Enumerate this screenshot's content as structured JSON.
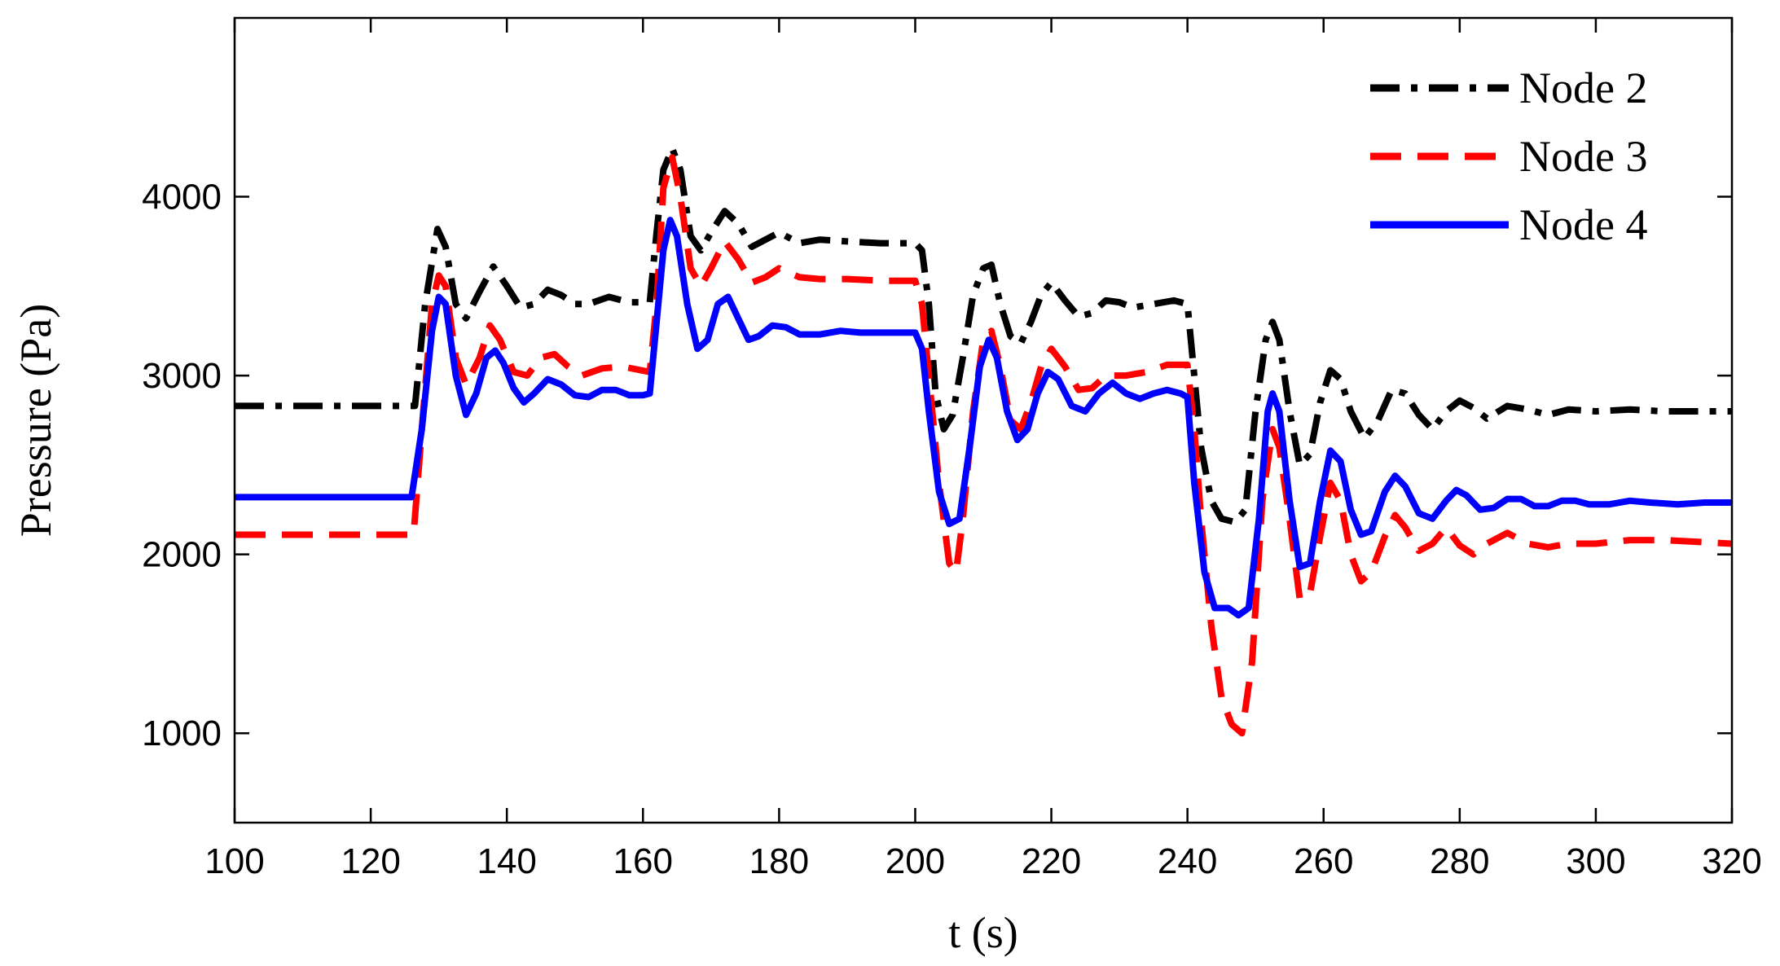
{
  "chart_data": {
    "type": "line",
    "xlabel": "t (s)",
    "ylabel": "Pressure (Pa)",
    "xlim": [
      100,
      320
    ],
    "ylim": [
      500,
      5000
    ],
    "x_ticks": [
      100,
      120,
      140,
      160,
      180,
      200,
      220,
      240,
      260,
      280,
      300,
      320
    ],
    "y_ticks": [
      1000,
      2000,
      3000,
      4000
    ],
    "x_tick_labels": [
      "100",
      "120",
      "140",
      "160",
      "180",
      "200",
      "220",
      "240",
      "260",
      "280",
      "300",
      "320"
    ],
    "y_tick_labels": [
      "1000",
      "2000",
      "3000",
      "4000"
    ],
    "grid": false,
    "legend_position": "top-right",
    "series": [
      {
        "name": "Node 2",
        "color": "#000000",
        "style": "dash-dot",
        "points": [
          [
            100,
            2830
          ],
          [
            125,
            2830
          ],
          [
            126.5,
            2830
          ],
          [
            128,
            3400
          ],
          [
            129.8,
            3820
          ],
          [
            131,
            3720
          ],
          [
            132.5,
            3400
          ],
          [
            134,
            3320
          ],
          [
            136,
            3470
          ],
          [
            138,
            3610
          ],
          [
            140,
            3500
          ],
          [
            142,
            3380
          ],
          [
            144,
            3400
          ],
          [
            146,
            3480
          ],
          [
            148,
            3450
          ],
          [
            150,
            3400
          ],
          [
            152,
            3400
          ],
          [
            155,
            3440
          ],
          [
            158,
            3410
          ],
          [
            161,
            3410
          ],
          [
            162,
            3800
          ],
          [
            163,
            4150
          ],
          [
            164.3,
            4270
          ],
          [
            165.5,
            4150
          ],
          [
            167,
            3780
          ],
          [
            168.5,
            3700
          ],
          [
            170,
            3800
          ],
          [
            172,
            3920
          ],
          [
            174,
            3850
          ],
          [
            176,
            3720
          ],
          [
            178,
            3760
          ],
          [
            180,
            3800
          ],
          [
            183,
            3740
          ],
          [
            186,
            3760
          ],
          [
            190,
            3750
          ],
          [
            195,
            3740
          ],
          [
            199,
            3740
          ],
          [
            200,
            3740
          ],
          [
            201,
            3700
          ],
          [
            202,
            3400
          ],
          [
            203,
            2900
          ],
          [
            204.2,
            2700
          ],
          [
            205.5,
            2780
          ],
          [
            207,
            3100
          ],
          [
            208.5,
            3450
          ],
          [
            210,
            3600
          ],
          [
            211.2,
            3620
          ],
          [
            212.5,
            3400
          ],
          [
            214,
            3220
          ],
          [
            215.5,
            3180
          ],
          [
            217,
            3300
          ],
          [
            218.5,
            3450
          ],
          [
            220,
            3520
          ],
          [
            222,
            3420
          ],
          [
            224,
            3330
          ],
          [
            226,
            3350
          ],
          [
            228,
            3420
          ],
          [
            230,
            3410
          ],
          [
            232,
            3380
          ],
          [
            235,
            3400
          ],
          [
            238,
            3420
          ],
          [
            240,
            3400
          ],
          [
            241,
            3000
          ],
          [
            242,
            2600
          ],
          [
            243.5,
            2300
          ],
          [
            245,
            2200
          ],
          [
            247,
            2180
          ],
          [
            248.5,
            2250
          ],
          [
            250,
            2800
          ],
          [
            251.5,
            3200
          ],
          [
            252.5,
            3300
          ],
          [
            253.5,
            3200
          ],
          [
            255,
            2800
          ],
          [
            256.5,
            2500
          ],
          [
            258,
            2560
          ],
          [
            259.5,
            2850
          ],
          [
            261,
            3030
          ],
          [
            262.5,
            2980
          ],
          [
            264,
            2800
          ],
          [
            266,
            2650
          ],
          [
            268,
            2750
          ],
          [
            270,
            2920
          ],
          [
            272,
            2900
          ],
          [
            274,
            2780
          ],
          [
            276,
            2700
          ],
          [
            278,
            2800
          ],
          [
            280,
            2860
          ],
          [
            282,
            2820
          ],
          [
            284,
            2760
          ],
          [
            287,
            2830
          ],
          [
            290,
            2810
          ],
          [
            293,
            2780
          ],
          [
            296,
            2810
          ],
          [
            300,
            2800
          ],
          [
            305,
            2810
          ],
          [
            310,
            2800
          ],
          [
            315,
            2800
          ],
          [
            320,
            2800
          ]
        ]
      },
      {
        "name": "Node 3",
        "color": "#ff0000",
        "style": "dashed",
        "points": [
          [
            100,
            2110
          ],
          [
            125,
            2110
          ],
          [
            126.3,
            2110
          ],
          [
            127.5,
            2700
          ],
          [
            129,
            3400
          ],
          [
            130,
            3560
          ],
          [
            131,
            3500
          ],
          [
            132.5,
            3100
          ],
          [
            134,
            2950
          ],
          [
            136,
            3100
          ],
          [
            137.5,
            3280
          ],
          [
            139,
            3200
          ],
          [
            141,
            3020
          ],
          [
            143,
            3000
          ],
          [
            145,
            3100
          ],
          [
            147,
            3120
          ],
          [
            149,
            3050
          ],
          [
            151,
            3000
          ],
          [
            154,
            3040
          ],
          [
            157,
            3050
          ],
          [
            161,
            3020
          ],
          [
            162,
            3400
          ],
          [
            163,
            4050
          ],
          [
            164.3,
            4220
          ],
          [
            165.5,
            4000
          ],
          [
            167,
            3600
          ],
          [
            168.5,
            3500
          ],
          [
            170,
            3600
          ],
          [
            172,
            3750
          ],
          [
            174,
            3650
          ],
          [
            176,
            3520
          ],
          [
            178,
            3550
          ],
          [
            180,
            3600
          ],
          [
            183,
            3550
          ],
          [
            186,
            3540
          ],
          [
            190,
            3540
          ],
          [
            195,
            3530
          ],
          [
            199,
            3530
          ],
          [
            200,
            3530
          ],
          [
            201,
            3400
          ],
          [
            202,
            3000
          ],
          [
            203.5,
            2400
          ],
          [
            205,
            1950
          ],
          [
            206,
            1900
          ],
          [
            207,
            2200
          ],
          [
            208.5,
            2800
          ],
          [
            210,
            3200
          ],
          [
            211.2,
            3250
          ],
          [
            212.5,
            3050
          ],
          [
            214,
            2750
          ],
          [
            215.5,
            2700
          ],
          [
            217,
            2850
          ],
          [
            218.5,
            3050
          ],
          [
            220,
            3150
          ],
          [
            222,
            3050
          ],
          [
            224,
            2920
          ],
          [
            226,
            2930
          ],
          [
            228,
            3000
          ],
          [
            231,
            3000
          ],
          [
            234,
            3020
          ],
          [
            237,
            3060
          ],
          [
            240,
            3060
          ],
          [
            241,
            2700
          ],
          [
            242,
            2200
          ],
          [
            243.5,
            1600
          ],
          [
            245,
            1200
          ],
          [
            246.5,
            1050
          ],
          [
            248,
            1000
          ],
          [
            249.5,
            1400
          ],
          [
            251,
            2300
          ],
          [
            252.5,
            2700
          ],
          [
            253.5,
            2600
          ],
          [
            255,
            2200
          ],
          [
            256.5,
            1750
          ],
          [
            258,
            1780
          ],
          [
            259.5,
            2100
          ],
          [
            261,
            2400
          ],
          [
            262.5,
            2300
          ],
          [
            264,
            2000
          ],
          [
            265.5,
            1850
          ],
          [
            267,
            1900
          ],
          [
            269,
            2100
          ],
          [
            270.5,
            2220
          ],
          [
            272,
            2150
          ],
          [
            274,
            2020
          ],
          [
            276,
            2060
          ],
          [
            278,
            2150
          ],
          [
            280,
            2050
          ],
          [
            282,
            2000
          ],
          [
            284,
            2060
          ],
          [
            287,
            2120
          ],
          [
            290,
            2060
          ],
          [
            293,
            2040
          ],
          [
            296,
            2060
          ],
          [
            300,
            2060
          ],
          [
            305,
            2080
          ],
          [
            310,
            2080
          ],
          [
            315,
            2070
          ],
          [
            320,
            2060
          ]
        ]
      },
      {
        "name": "Node 4",
        "color": "#0000ff",
        "style": "solid",
        "points": [
          [
            100,
            2320
          ],
          [
            110,
            2320
          ],
          [
            120,
            2320
          ],
          [
            126,
            2320
          ],
          [
            127.5,
            2700
          ],
          [
            129,
            3250
          ],
          [
            130,
            3440
          ],
          [
            131,
            3400
          ],
          [
            132.5,
            3000
          ],
          [
            134,
            2780
          ],
          [
            135.5,
            2900
          ],
          [
            137,
            3100
          ],
          [
            138.3,
            3140
          ],
          [
            139.5,
            3070
          ],
          [
            141,
            2930
          ],
          [
            142.5,
            2850
          ],
          [
            144,
            2900
          ],
          [
            146,
            2980
          ],
          [
            148,
            2950
          ],
          [
            150,
            2890
          ],
          [
            152,
            2880
          ],
          [
            154,
            2920
          ],
          [
            156,
            2920
          ],
          [
            158,
            2890
          ],
          [
            160,
            2890
          ],
          [
            161,
            2900
          ],
          [
            162,
            3300
          ],
          [
            163,
            3700
          ],
          [
            164,
            3870
          ],
          [
            165,
            3780
          ],
          [
            166.5,
            3400
          ],
          [
            168,
            3150
          ],
          [
            169.5,
            3200
          ],
          [
            171,
            3400
          ],
          [
            172.5,
            3440
          ],
          [
            174,
            3320
          ],
          [
            175.5,
            3200
          ],
          [
            177,
            3220
          ],
          [
            179,
            3280
          ],
          [
            181,
            3270
          ],
          [
            183,
            3230
          ],
          [
            186,
            3230
          ],
          [
            189,
            3250
          ],
          [
            192,
            3240
          ],
          [
            195,
            3240
          ],
          [
            199,
            3240
          ],
          [
            200,
            3240
          ],
          [
            201,
            3150
          ],
          [
            202,
            2800
          ],
          [
            203.5,
            2350
          ],
          [
            205,
            2170
          ],
          [
            206.5,
            2200
          ],
          [
            208,
            2600
          ],
          [
            209.5,
            3050
          ],
          [
            210.8,
            3200
          ],
          [
            212,
            3100
          ],
          [
            213.5,
            2800
          ],
          [
            215,
            2640
          ],
          [
            216.5,
            2700
          ],
          [
            218,
            2900
          ],
          [
            219.5,
            3020
          ],
          [
            221,
            2980
          ],
          [
            223,
            2830
          ],
          [
            225,
            2800
          ],
          [
            227,
            2900
          ],
          [
            229,
            2960
          ],
          [
            231,
            2900
          ],
          [
            233,
            2870
          ],
          [
            235,
            2900
          ],
          [
            237,
            2920
          ],
          [
            239,
            2900
          ],
          [
            240,
            2880
          ],
          [
            241,
            2400
          ],
          [
            242.5,
            1900
          ],
          [
            244,
            1700
          ],
          [
            246,
            1700
          ],
          [
            247.5,
            1660
          ],
          [
            249,
            1700
          ],
          [
            250.5,
            2200
          ],
          [
            251.8,
            2800
          ],
          [
            252.5,
            2900
          ],
          [
            253.5,
            2800
          ],
          [
            255,
            2300
          ],
          [
            256.5,
            1930
          ],
          [
            258,
            1950
          ],
          [
            259.5,
            2300
          ],
          [
            261,
            2580
          ],
          [
            262.5,
            2520
          ],
          [
            264,
            2250
          ],
          [
            265.5,
            2110
          ],
          [
            267,
            2130
          ],
          [
            269,
            2350
          ],
          [
            270.5,
            2440
          ],
          [
            272,
            2380
          ],
          [
            274,
            2230
          ],
          [
            276,
            2200
          ],
          [
            278,
            2300
          ],
          [
            279.5,
            2360
          ],
          [
            281,
            2330
          ],
          [
            283,
            2250
          ],
          [
            285,
            2260
          ],
          [
            287,
            2310
          ],
          [
            289,
            2310
          ],
          [
            291,
            2270
          ],
          [
            293,
            2270
          ],
          [
            295,
            2300
          ],
          [
            297,
            2300
          ],
          [
            299,
            2280
          ],
          [
            302,
            2280
          ],
          [
            305,
            2300
          ],
          [
            308,
            2290
          ],
          [
            312,
            2280
          ],
          [
            316,
            2290
          ],
          [
            320,
            2290
          ]
        ]
      }
    ]
  }
}
